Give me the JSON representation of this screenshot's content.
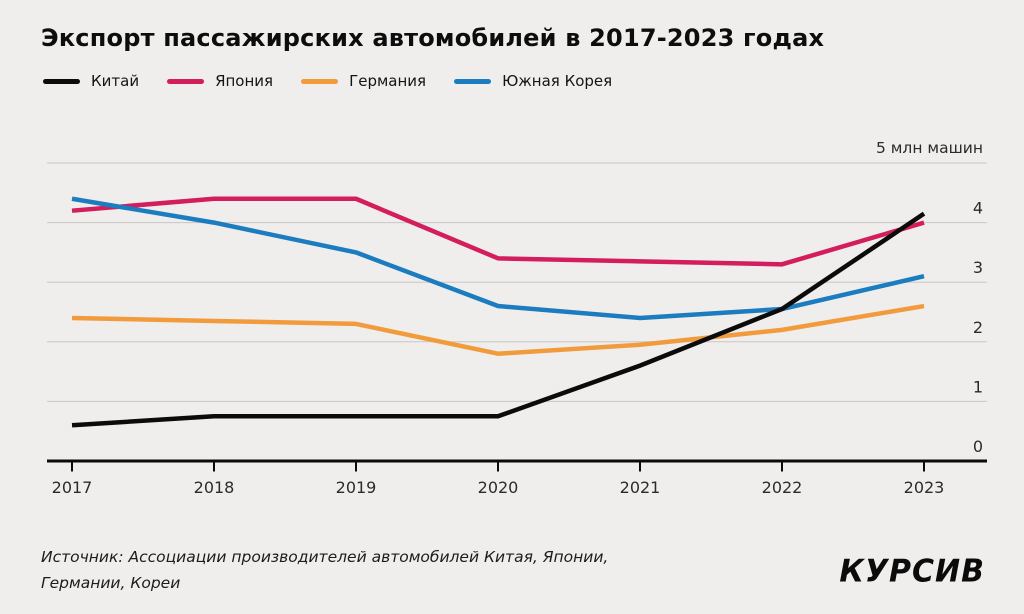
{
  "title": "Экспорт пассажирских автомобилей в 2017-2023 годах",
  "chart_data": {
    "type": "line",
    "title": "Экспорт пассажирских автомобилей в 2017-2023 годах",
    "x": [
      "2017",
      "2018",
      "2019",
      "2020",
      "2021",
      "2022",
      "2023"
    ],
    "series": [
      {
        "name": "Китай",
        "color": "#0b0b0b",
        "values": [
          0.6,
          0.75,
          0.75,
          0.75,
          1.6,
          2.55,
          4.15
        ]
      },
      {
        "name": "Япония",
        "color": "#d31d5c",
        "values": [
          4.2,
          4.4,
          4.4,
          3.4,
          3.35,
          3.3,
          4.0
        ]
      },
      {
        "name": "Германия",
        "color": "#f29b3d",
        "values": [
          2.4,
          2.35,
          2.3,
          1.8,
          1.95,
          2.2,
          2.6
        ]
      },
      {
        "name": "Южная Корея",
        "color": "#1c7cc0",
        "values": [
          4.4,
          4.0,
          3.5,
          2.6,
          2.4,
          2.55,
          3.1
        ]
      }
    ],
    "xlabel": "",
    "ylabel": "5 млн машин",
    "ylim": [
      0,
      5
    ],
    "yticks": [
      "0",
      "1",
      "2",
      "3",
      "4"
    ],
    "grid": true,
    "legend_position": "top-left"
  },
  "footer": {
    "source_lines": [
      "Источник: Ассоциации производителей автомобилей Китая, Японии,",
      "Германии, Кореи"
    ],
    "logo": "КУРСИВ"
  },
  "colors": {
    "background": "#efeeec",
    "gridline": "#c9c7c3",
    "axis": "#0b0b0b",
    "tick_text": "#2b2b2b"
  }
}
